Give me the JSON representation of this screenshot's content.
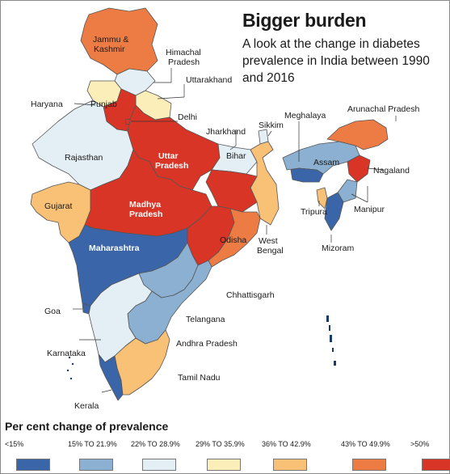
{
  "title": "Bigger burden",
  "subtitle": "A look at the change in diabetes prevalence in India between 1990 and 2016",
  "legend": {
    "title": "Per cent change of prevalence",
    "items": [
      {
        "label": "<15%",
        "color": "#3a66a9"
      },
      {
        "label": "15% TO 21.9%",
        "color": "#8bb0d2"
      },
      {
        "label": "22% TO 28.9%",
        "color": "#e3eef5"
      },
      {
        "label": "29% TO 35.9%",
        "color": "#fbeeb8"
      },
      {
        "label": "36% TO 42.9%",
        "color": "#f9c176"
      },
      {
        "label": "43% TO 49.9%",
        "color": "#ec7c44"
      },
      {
        "label": ">50%",
        "color": "#d93527"
      }
    ]
  },
  "states": [
    {
      "name": "Jammu & Kashmir",
      "category": "43% TO 49.9%"
    },
    {
      "name": "Himachal Pradesh",
      "category": "22% TO 28.9%"
    },
    {
      "name": "Punjab",
      "category": "29% TO 35.9%"
    },
    {
      "name": "Haryana",
      "category": ">50%"
    },
    {
      "name": "Uttarakhand",
      "category": "29% TO 35.9%"
    },
    {
      "name": "Delhi",
      "category": ">50%"
    },
    {
      "name": "Rajasthan",
      "category": "22% TO 28.9%"
    },
    {
      "name": "Uttar Pradesh",
      "category": ">50%"
    },
    {
      "name": "Bihar",
      "category": "22% TO 28.9%"
    },
    {
      "name": "Sikkim",
      "category": "22% TO 28.9%"
    },
    {
      "name": "Jharkhand",
      "category": ">50%"
    },
    {
      "name": "Meghalaya",
      "category": "<15%"
    },
    {
      "name": "Arunachal Pradesh",
      "category": "43% TO 49.9%"
    },
    {
      "name": "Assam",
      "category": "15% TO 21.9%"
    },
    {
      "name": "Nagaland",
      "category": ">50%"
    },
    {
      "name": "Manipur",
      "category": "15% TO 21.9%"
    },
    {
      "name": "Mizoram",
      "category": "<15%"
    },
    {
      "name": "Tripura",
      "category": "36% TO 42.9%"
    },
    {
      "name": "West Bengal",
      "category": "36% TO 42.9%"
    },
    {
      "name": "Gujarat",
      "category": "36% TO 42.9%"
    },
    {
      "name": "Madhya Pradesh",
      "category": ">50%"
    },
    {
      "name": "Odisha",
      "category": "43% TO 49.9%"
    },
    {
      "name": "Chhattisgarh",
      "category": ">50%"
    },
    {
      "name": "Maharashtra",
      "category": "<15%"
    },
    {
      "name": "Telangana",
      "category": "15% TO 21.9%"
    },
    {
      "name": "Andhra Pradesh",
      "category": "15% TO 21.9%"
    },
    {
      "name": "Goa",
      "category": "<15%"
    },
    {
      "name": "Karnataka",
      "category": "22% TO 28.9%"
    },
    {
      "name": "Tamil Nadu",
      "category": "36% TO 42.9%"
    },
    {
      "name": "Kerala",
      "category": "<15%"
    }
  ]
}
